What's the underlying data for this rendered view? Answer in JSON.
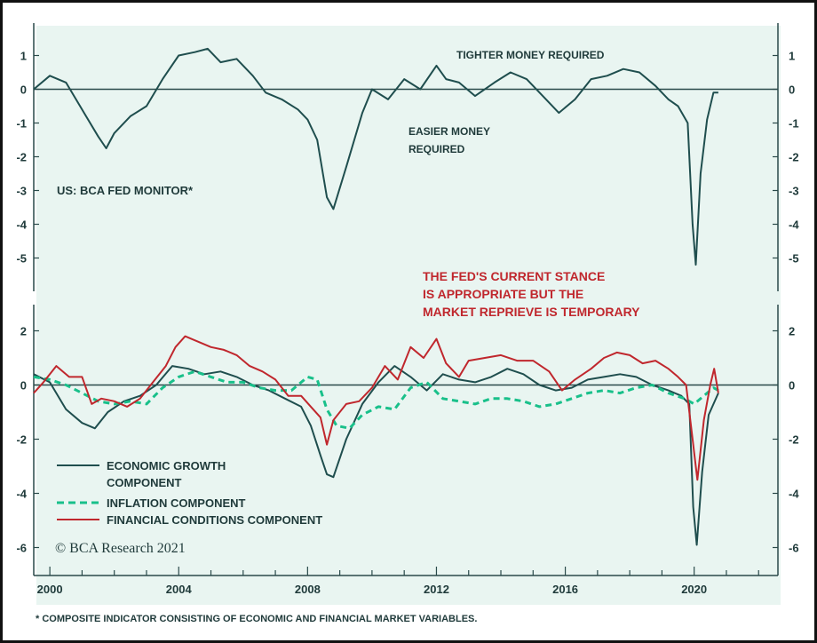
{
  "colors": {
    "background": "#e9f5f1",
    "axis": "#2a4a4a",
    "economic": "#1f4e4e",
    "inflation": "#19c08a",
    "financial": "#c0272d",
    "text": "#1f3a3a",
    "annotation_red": "#c0272d"
  },
  "annotations": {
    "panel_top_title": "US: BCA FED MONITOR*",
    "tighter": "TIGHTER MONEY REQUIRED",
    "easier_line1": "EASIER MONEY",
    "easier_line2": "REQUIRED",
    "stance_line1": "THE FED'S CURRENT STANCE",
    "stance_line2": "IS APPROPRIATE BUT THE",
    "stance_line3": "MARKET REPRIEVE IS TEMPORARY",
    "copyright": "© BCA Research 2021",
    "footnote": "* COMPOSITE INDICATOR CONSISTING OF ECONOMIC AND FINANCIAL MARKET VARIABLES."
  },
  "legend": [
    {
      "name": "ECONOMIC GROWTH",
      "name2": "COMPONENT",
      "color": "#1f4e4e",
      "style": "solid"
    },
    {
      "name": "INFLATION COMPONENT",
      "color": "#19c08a",
      "style": "dashed"
    },
    {
      "name": "FINANCIAL CONDITIONS COMPONENT",
      "color": "#c0272d",
      "style": "solid"
    }
  ],
  "chart_data": [
    {
      "type": "line",
      "title": "US: BCA FED MONITOR*",
      "xlim": [
        1999.5,
        2022.6
      ],
      "ylim": [
        -6.0,
        1.9
      ],
      "y_ticks": [
        1,
        0,
        -1,
        -2,
        -3,
        -4,
        -5
      ],
      "y_tick_labels": [
        "1",
        "0",
        "-1",
        "-2",
        "-3",
        "-4",
        "-5"
      ],
      "grid": false,
      "series": [
        {
          "name": "",
          "color": "#1f4e4e",
          "x": [
            1999.5,
            2000.0,
            2000.5,
            2001.0,
            2001.5,
            2001.75,
            2002.0,
            2002.5,
            2003.0,
            2003.5,
            2004.0,
            2004.5,
            2004.9,
            2005.3,
            2005.8,
            2006.3,
            2006.7,
            2007.2,
            2007.7,
            2008.0,
            2008.3,
            2008.6,
            2008.8,
            2009.2,
            2009.7,
            2010.0,
            2010.5,
            2011.0,
            2011.5,
            2012.0,
            2012.3,
            2012.7,
            2013.2,
            2013.8,
            2014.3,
            2014.8,
            2015.3,
            2015.8,
            2016.3,
            2016.8,
            2017.3,
            2017.8,
            2018.3,
            2018.8,
            2019.2,
            2019.5,
            2019.8,
            2019.95,
            2020.05,
            2020.2,
            2020.4,
            2020.6,
            2020.75
          ],
          "values": [
            0.0,
            0.4,
            0.2,
            -0.6,
            -1.4,
            -1.75,
            -1.3,
            -0.8,
            -0.5,
            0.3,
            1.0,
            1.1,
            1.2,
            0.8,
            0.9,
            0.4,
            -0.1,
            -0.3,
            -0.6,
            -0.9,
            -1.5,
            -3.2,
            -3.55,
            -2.3,
            -0.7,
            0.0,
            -0.3,
            0.3,
            0.0,
            0.7,
            0.3,
            0.2,
            -0.2,
            0.2,
            0.5,
            0.3,
            -0.2,
            -0.7,
            -0.3,
            0.3,
            0.4,
            0.6,
            0.5,
            0.1,
            -0.3,
            -0.5,
            -1.0,
            -4.0,
            -5.2,
            -2.5,
            -0.9,
            -0.1,
            -0.1
          ]
        }
      ]
    },
    {
      "type": "line",
      "title": "",
      "xlim": [
        1999.5,
        2022.6
      ],
      "ylim": [
        -7.0,
        3.0
      ],
      "y_ticks": [
        2,
        0,
        -2,
        -4,
        -6
      ],
      "y_tick_labels": [
        "2",
        "0",
        "-2",
        "-4",
        "-6"
      ],
      "x_ticks": [
        2000,
        2004,
        2008,
        2012,
        2016,
        2020
      ],
      "x_tick_labels": [
        "2000",
        "2004",
        "2008",
        "2012",
        "2016",
        "2020"
      ],
      "grid": false,
      "legend_position": "bottom-left",
      "series": [
        {
          "name": "ECONOMIC GROWTH COMPONENT",
          "color": "#1f4e4e",
          "style": "solid",
          "x": [
            1999.5,
            2000.0,
            2000.5,
            2001.0,
            2001.4,
            2001.8,
            2002.3,
            2002.8,
            2003.3,
            2003.8,
            2004.3,
            2004.8,
            2005.3,
            2005.8,
            2006.3,
            2006.8,
            2007.3,
            2007.8,
            2008.1,
            2008.4,
            2008.6,
            2008.8,
            2009.2,
            2009.7,
            2010.2,
            2010.7,
            2011.2,
            2011.7,
            2012.2,
            2012.7,
            2013.2,
            2013.7,
            2014.2,
            2014.7,
            2015.2,
            2015.7,
            2016.2,
            2016.7,
            2017.2,
            2017.7,
            2018.2,
            2018.7,
            2019.2,
            2019.6,
            2019.85,
            2019.97,
            2020.08,
            2020.25,
            2020.45,
            2020.75
          ],
          "values": [
            0.4,
            0.1,
            -0.9,
            -1.4,
            -1.6,
            -1.0,
            -0.6,
            -0.4,
            0.0,
            0.7,
            0.6,
            0.4,
            0.5,
            0.3,
            0.0,
            -0.2,
            -0.5,
            -0.8,
            -1.5,
            -2.6,
            -3.3,
            -3.4,
            -2.0,
            -0.7,
            0.1,
            0.7,
            0.3,
            -0.2,
            0.4,
            0.2,
            0.1,
            0.3,
            0.6,
            0.4,
            0.0,
            -0.2,
            -0.1,
            0.2,
            0.3,
            0.4,
            0.3,
            0.0,
            -0.2,
            -0.4,
            -0.7,
            -4.5,
            -5.9,
            -3.2,
            -1.1,
            -0.3
          ]
        },
        {
          "name": "INFLATION COMPONENT",
          "color": "#19c08a",
          "style": "dashed",
          "x": [
            1999.5,
            2000.0,
            2000.5,
            2001.0,
            2001.5,
            2002.0,
            2002.5,
            2003.0,
            2003.5,
            2004.0,
            2004.5,
            2005.0,
            2005.5,
            2006.0,
            2006.5,
            2007.0,
            2007.5,
            2008.0,
            2008.3,
            2008.6,
            2008.9,
            2009.3,
            2009.7,
            2010.2,
            2010.7,
            2011.2,
            2011.7,
            2012.2,
            2012.7,
            2013.2,
            2013.7,
            2014.2,
            2014.7,
            2015.2,
            2015.7,
            2016.2,
            2016.7,
            2017.2,
            2017.7,
            2018.2,
            2018.7,
            2019.2,
            2019.7,
            2020.0,
            2020.3,
            2020.6,
            2020.75
          ],
          "values": [
            0.3,
            0.2,
            0.0,
            -0.3,
            -0.6,
            -0.7,
            -0.6,
            -0.7,
            -0.1,
            0.3,
            0.5,
            0.3,
            0.1,
            0.1,
            -0.1,
            -0.2,
            -0.2,
            0.3,
            0.2,
            -0.9,
            -1.5,
            -1.6,
            -1.1,
            -0.8,
            -0.9,
            -0.1,
            0.1,
            -0.5,
            -0.6,
            -0.7,
            -0.5,
            -0.5,
            -0.6,
            -0.8,
            -0.7,
            -0.5,
            -0.3,
            -0.2,
            -0.3,
            -0.1,
            0.0,
            -0.3,
            -0.5,
            -0.7,
            -0.4,
            -0.1,
            -0.2
          ]
        },
        {
          "name": "FINANCIAL CONDITIONS COMPONENT",
          "color": "#c0272d",
          "style": "solid",
          "x": [
            1999.5,
            1999.8,
            2000.2,
            2000.6,
            2001.0,
            2001.3,
            2001.6,
            2002.0,
            2002.4,
            2002.8,
            2003.2,
            2003.6,
            2003.9,
            2004.2,
            2004.6,
            2005.0,
            2005.4,
            2005.8,
            2006.2,
            2006.6,
            2007.0,
            2007.4,
            2007.8,
            2008.1,
            2008.4,
            2008.6,
            2008.8,
            2009.2,
            2009.6,
            2010.0,
            2010.4,
            2010.8,
            2011.2,
            2011.6,
            2012.0,
            2012.3,
            2012.7,
            2013.0,
            2013.5,
            2014.0,
            2014.5,
            2015.0,
            2015.5,
            2015.9,
            2016.3,
            2016.8,
            2017.2,
            2017.6,
            2018.0,
            2018.4,
            2018.8,
            2019.2,
            2019.5,
            2019.75,
            2019.95,
            2020.1,
            2020.3,
            2020.5,
            2020.62,
            2020.75
          ],
          "values": [
            -0.3,
            0.1,
            0.7,
            0.3,
            0.3,
            -0.7,
            -0.5,
            -0.6,
            -0.8,
            -0.5,
            0.1,
            0.7,
            1.4,
            1.8,
            1.6,
            1.4,
            1.3,
            1.1,
            0.7,
            0.5,
            0.2,
            -0.4,
            -0.4,
            -0.8,
            -1.2,
            -2.2,
            -1.3,
            -0.7,
            -0.6,
            -0.1,
            0.7,
            0.2,
            1.4,
            1.0,
            1.7,
            0.8,
            0.3,
            0.9,
            1.0,
            1.1,
            0.9,
            0.9,
            0.5,
            -0.2,
            0.2,
            0.6,
            1.0,
            1.2,
            1.1,
            0.8,
            0.9,
            0.6,
            0.3,
            0.0,
            -2.0,
            -3.5,
            -1.3,
            0.0,
            0.6,
            -0.3
          ]
        }
      ]
    }
  ]
}
